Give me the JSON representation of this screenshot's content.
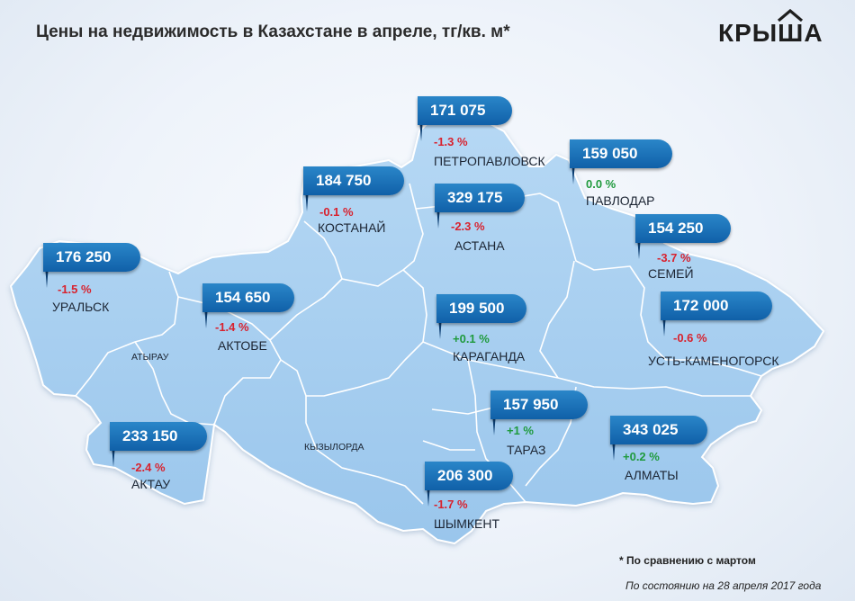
{
  "title": "Цены на недвижимость в Казахстане в апреле, тг/кв. м*",
  "logo": {
    "text": "КРЫША",
    "icon": "house-roof-icon",
    "color": "#1e1e1e"
  },
  "colors": {
    "land": "#a9d0f1",
    "border": "#ffffff",
    "price_tag": "#1a6fb6",
    "negative": "#d8222e",
    "positive": "#1f9a3d"
  },
  "cities": [
    {
      "id": "petropavlovsk",
      "name": "ПЕТРОПАВЛОВСК",
      "price": "171 075",
      "change": "-1.3 %",
      "trend": "negative"
    },
    {
      "id": "pavlodar",
      "name": "ПАВЛОДАР",
      "price": "159 050",
      "change": "0.0 %",
      "trend": "positive"
    },
    {
      "id": "kostanay",
      "name": "КОСТАНАЙ",
      "price": "184 750",
      "change": "-0.1 %",
      "trend": "negative"
    },
    {
      "id": "astana",
      "name": "АСТАНА",
      "price": "329 175",
      "change": "-2.3 %",
      "trend": "negative"
    },
    {
      "id": "semey",
      "name": "СЕМЕЙ",
      "price": "154 250",
      "change": "-3.7 %",
      "trend": "negative"
    },
    {
      "id": "uralsk",
      "name": "УРАЛЬСК",
      "price": "176 250",
      "change": "-1.5 %",
      "trend": "negative"
    },
    {
      "id": "aktobe",
      "name": "АКТОБЕ",
      "price": "154 650",
      "change": "-1.4 %",
      "trend": "negative"
    },
    {
      "id": "karaganda",
      "name": "КАРАГАНДА",
      "price": "199 500",
      "change": "+0.1 %",
      "trend": "positive"
    },
    {
      "id": "ust-kamenogorsk",
      "name": "УСТЬ-КАМЕНОГОРСК",
      "price": "172 000",
      "change": "-0.6 %",
      "trend": "negative"
    },
    {
      "id": "taraz",
      "name": "ТАРАЗ",
      "price": "157 950",
      "change": "+1 %",
      "trend": "positive"
    },
    {
      "id": "aktau",
      "name": "АКТАУ",
      "price": "233 150",
      "change": "-2.4 %",
      "trend": "negative"
    },
    {
      "id": "almaty",
      "name": "АЛМАТЫ",
      "price": "343 025",
      "change": "+0.2 %",
      "trend": "positive"
    },
    {
      "id": "shymkent",
      "name": "ШЫМКЕНТ",
      "price": "206 300",
      "change": "-1.7 %",
      "trend": "negative"
    }
  ],
  "plain_labels": [
    {
      "id": "atyrau",
      "name": "АТЫРАУ"
    },
    {
      "id": "kyzylorda",
      "name": "КЫЗЫЛОРДА"
    }
  ],
  "footnote": "* По сравнению с мартом",
  "date_note": "По состоянию на 28 апреля 2017 года"
}
